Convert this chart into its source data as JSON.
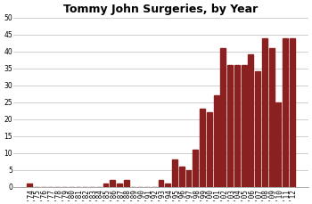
{
  "title": "Tommy John Surgeries, by Year",
  "years": [
    1974,
    1975,
    1976,
    1977,
    1978,
    1979,
    1980,
    1981,
    1982,
    1983,
    1984,
    1985,
    1986,
    1987,
    1988,
    1989,
    1990,
    1991,
    1992,
    1993,
    1994,
    1995,
    1996,
    1997,
    1998,
    1999,
    2000,
    2001,
    2002,
    2003,
    2004,
    2005,
    2006,
    2007,
    2008,
    2009,
    2010,
    2011,
    2012
  ],
  "values": [
    1,
    0,
    0,
    0,
    0,
    0,
    0,
    0,
    0,
    0,
    0,
    1,
    2,
    1,
    2,
    0,
    0,
    0,
    0,
    2,
    1,
    8,
    6,
    5,
    11,
    23,
    22,
    27,
    41,
    36,
    36,
    36,
    39,
    34,
    44,
    41,
    25,
    44,
    44
  ],
  "bar_color": "#8B2020",
  "ylim": [
    0,
    50
  ],
  "yticks": [
    0,
    5,
    10,
    15,
    20,
    25,
    30,
    35,
    40,
    45,
    50
  ],
  "title_fontsize": 9,
  "tick_fontsize": 5.5,
  "bg_color": "#FFFFFF",
  "grid_color": "#C8C8C8"
}
